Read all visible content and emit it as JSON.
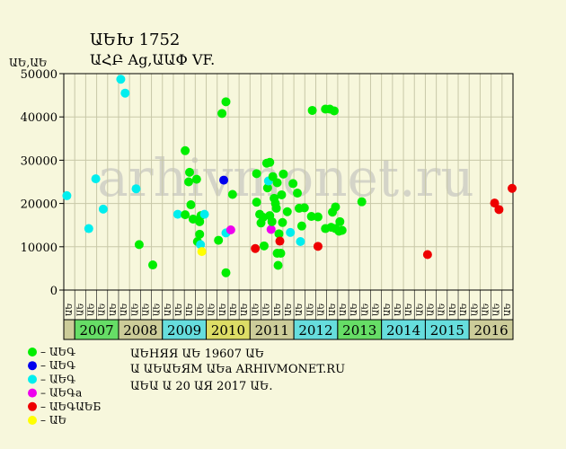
{
  "header": {
    "title": "ԱԵԽ 1752",
    "subtitle": "ԱՀԲ Ag,ԱԱՓ VF.",
    "y_unit": "ԱԵ,ԱԵ"
  },
  "watermark": "arhivmonet.ru",
  "legend": {
    "items": [
      {
        "label": "– ԱԵԳ",
        "color": "#00ee00"
      },
      {
        "label": "– ԱԵԳ",
        "color": "#0000ee"
      },
      {
        "label": "– ԱԵԳ",
        "color": "#00eeee"
      },
      {
        "label": "– ԱԵԳа",
        "color": "#ee00ee"
      },
      {
        "label": "– ԱԵԳԱԵБ",
        "color": "#ee0000"
      },
      {
        "label": "– ԱԵ",
        "color": "#ffff00"
      }
    ]
  },
  "notes": {
    "line1": "ԱԵНЯЯ ԱԵ 19607 ԱԵ",
    "line2": "Ա ԱԵԱԵЯМ ԱԵа ARHIVMONET.RU",
    "line3": "ԱԵԱ Ա 20 ԱЯ 2017 ԱԵ."
  },
  "chart_data": {
    "type": "scatter",
    "title": "ԱԵԽ 1752",
    "ylabel": "ԱԵ,ԱԵ",
    "ylim": [
      0,
      50000
    ],
    "yticks": [
      0,
      10000,
      20000,
      30000,
      40000,
      50000
    ],
    "grid": true,
    "quarter_labels": [
      "ԱԵ",
      "ԱԵ",
      "ԱԵ",
      "ԱԵ"
    ],
    "years": [
      {
        "label": "2007",
        "color": "#66dd66"
      },
      {
        "label": "2008",
        "color": "#cccc99"
      },
      {
        "label": "2009",
        "color": "#66dddd"
      },
      {
        "label": "2010",
        "color": "#dddd66"
      },
      {
        "label": "2011",
        "color": "#cccc99"
      },
      {
        "label": "2012",
        "color": "#66dddd"
      },
      {
        "label": "2013",
        "color": "#66dd66"
      },
      {
        "label": "2014",
        "color": "#66dddd"
      },
      {
        "label": "2015",
        "color": "#66dddd"
      },
      {
        "label": "2016",
        "color": "#cccc99"
      }
    ],
    "x_start": 2006.75,
    "x_end": 2017.0,
    "points": [
      {
        "x": 2006.82,
        "y": 21800,
        "color": "#00eeee"
      },
      {
        "x": 2007.32,
        "y": 14200,
        "color": "#00eeee"
      },
      {
        "x": 2007.48,
        "y": 25700,
        "color": "#00eeee"
      },
      {
        "x": 2007.65,
        "y": 18700,
        "color": "#00eeee"
      },
      {
        "x": 2008.05,
        "y": 48700,
        "color": "#00eeee"
      },
      {
        "x": 2008.15,
        "y": 45500,
        "color": "#00eeee"
      },
      {
        "x": 2008.4,
        "y": 23400,
        "color": "#00eeee"
      },
      {
        "x": 2008.47,
        "y": 10500,
        "color": "#00ee00"
      },
      {
        "x": 2008.78,
        "y": 5800,
        "color": "#00ee00"
      },
      {
        "x": 2009.35,
        "y": 17500,
        "color": "#00eeee"
      },
      {
        "x": 2009.52,
        "y": 17400,
        "color": "#00ee00"
      },
      {
        "x": 2009.52,
        "y": 32200,
        "color": "#00ee00"
      },
      {
        "x": 2009.6,
        "y": 25000,
        "color": "#00ee00"
      },
      {
        "x": 2009.62,
        "y": 27200,
        "color": "#00ee00"
      },
      {
        "x": 2009.65,
        "y": 19700,
        "color": "#00ee00"
      },
      {
        "x": 2009.7,
        "y": 16400,
        "color": "#00ee00"
      },
      {
        "x": 2009.78,
        "y": 25600,
        "color": "#00ee00"
      },
      {
        "x": 2009.8,
        "y": 11200,
        "color": "#00ee00"
      },
      {
        "x": 2009.85,
        "y": 12900,
        "color": "#00ee00"
      },
      {
        "x": 2009.85,
        "y": 15800,
        "color": "#00ee00"
      },
      {
        "x": 2009.87,
        "y": 10500,
        "color": "#00eeee"
      },
      {
        "x": 2009.88,
        "y": 17200,
        "color": "#00ee00"
      },
      {
        "x": 2009.9,
        "y": 8900,
        "color": "#ffff00"
      },
      {
        "x": 2009.96,
        "y": 17500,
        "color": "#00eeee"
      },
      {
        "x": 2010.28,
        "y": 11500,
        "color": "#00ee00"
      },
      {
        "x": 2010.36,
        "y": 40800,
        "color": "#00ee00"
      },
      {
        "x": 2010.4,
        "y": 25400,
        "color": "#0000ee"
      },
      {
        "x": 2010.45,
        "y": 43500,
        "color": "#00ee00"
      },
      {
        "x": 2010.45,
        "y": 13200,
        "color": "#00eeee"
      },
      {
        "x": 2010.45,
        "y": 4000,
        "color": "#00ee00"
      },
      {
        "x": 2010.56,
        "y": 13900,
        "color": "#ee00ee"
      },
      {
        "x": 2010.6,
        "y": 22100,
        "color": "#00ee00"
      },
      {
        "x": 2011.12,
        "y": 9600,
        "color": "#ee0000"
      },
      {
        "x": 2011.15,
        "y": 26900,
        "color": "#00ee00"
      },
      {
        "x": 2011.15,
        "y": 20300,
        "color": "#00ee00"
      },
      {
        "x": 2011.22,
        "y": 17500,
        "color": "#00ee00"
      },
      {
        "x": 2011.25,
        "y": 15500,
        "color": "#00ee00"
      },
      {
        "x": 2011.3,
        "y": 16800,
        "color": "#00ee00"
      },
      {
        "x": 2011.32,
        "y": 10200,
        "color": "#00ee00"
      },
      {
        "x": 2011.38,
        "y": 29300,
        "color": "#00ee00"
      },
      {
        "x": 2011.4,
        "y": 23600,
        "color": "#00ee00"
      },
      {
        "x": 2011.42,
        "y": 25200,
        "color": "#00eeee"
      },
      {
        "x": 2011.45,
        "y": 29500,
        "color": "#00ee00"
      },
      {
        "x": 2011.45,
        "y": 17200,
        "color": "#00ee00"
      },
      {
        "x": 2011.48,
        "y": 14000,
        "color": "#ee00ee"
      },
      {
        "x": 2011.5,
        "y": 15800,
        "color": "#00ee00"
      },
      {
        "x": 2011.52,
        "y": 26200,
        "color": "#00ee00"
      },
      {
        "x": 2011.55,
        "y": 21200,
        "color": "#00ee00"
      },
      {
        "x": 2011.58,
        "y": 20000,
        "color": "#00ee00"
      },
      {
        "x": 2011.6,
        "y": 18900,
        "color": "#00ee00"
      },
      {
        "x": 2011.62,
        "y": 24800,
        "color": "#00ee00"
      },
      {
        "x": 2011.62,
        "y": 8500,
        "color": "#00ee00"
      },
      {
        "x": 2011.64,
        "y": 5700,
        "color": "#00ee00"
      },
      {
        "x": 2011.66,
        "y": 13000,
        "color": "#00ee00"
      },
      {
        "x": 2011.68,
        "y": 11300,
        "color": "#ee0000"
      },
      {
        "x": 2011.7,
        "y": 8500,
        "color": "#00ee00"
      },
      {
        "x": 2011.72,
        "y": 22000,
        "color": "#00ee00"
      },
      {
        "x": 2011.74,
        "y": 15600,
        "color": "#00ee00"
      },
      {
        "x": 2011.76,
        "y": 26800,
        "color": "#00ee00"
      },
      {
        "x": 2011.85,
        "y": 18100,
        "color": "#00ee00"
      },
      {
        "x": 2011.92,
        "y": 13300,
        "color": "#00eeee"
      },
      {
        "x": 2011.98,
        "y": 24600,
        "color": "#00ee00"
      },
      {
        "x": 2012.08,
        "y": 22400,
        "color": "#00ee00"
      },
      {
        "x": 2012.12,
        "y": 18900,
        "color": "#00ee00"
      },
      {
        "x": 2012.15,
        "y": 11200,
        "color": "#00eeee"
      },
      {
        "x": 2012.18,
        "y": 14800,
        "color": "#00ee00"
      },
      {
        "x": 2012.24,
        "y": 19000,
        "color": "#00ee00"
      },
      {
        "x": 2012.4,
        "y": 17000,
        "color": "#00ee00"
      },
      {
        "x": 2012.42,
        "y": 41500,
        "color": "#00ee00"
      },
      {
        "x": 2012.55,
        "y": 16900,
        "color": "#00ee00"
      },
      {
        "x": 2012.55,
        "y": 10100,
        "color": "#ee0000"
      },
      {
        "x": 2012.72,
        "y": 41800,
        "color": "#00ee00"
      },
      {
        "x": 2012.72,
        "y": 14200,
        "color": "#00ee00"
      },
      {
        "x": 2012.82,
        "y": 41800,
        "color": "#00ee00"
      },
      {
        "x": 2012.85,
        "y": 14500,
        "color": "#00ee00"
      },
      {
        "x": 2012.88,
        "y": 18000,
        "color": "#00ee00"
      },
      {
        "x": 2012.92,
        "y": 41400,
        "color": "#00ee00"
      },
      {
        "x": 2012.95,
        "y": 19200,
        "color": "#00ee00"
      },
      {
        "x": 2012.95,
        "y": 14200,
        "color": "#00ee00"
      },
      {
        "x": 2013.03,
        "y": 13600,
        "color": "#00ee00"
      },
      {
        "x": 2013.05,
        "y": 15800,
        "color": "#00ee00"
      },
      {
        "x": 2013.1,
        "y": 13800,
        "color": "#00ee00"
      },
      {
        "x": 2013.55,
        "y": 20400,
        "color": "#00ee00"
      },
      {
        "x": 2015.05,
        "y": 8200,
        "color": "#ee0000"
      },
      {
        "x": 2016.58,
        "y": 20100,
        "color": "#ee0000"
      },
      {
        "x": 2016.68,
        "y": 18600,
        "color": "#ee0000"
      },
      {
        "x": 2016.98,
        "y": 23500,
        "color": "#ee0000"
      }
    ]
  }
}
